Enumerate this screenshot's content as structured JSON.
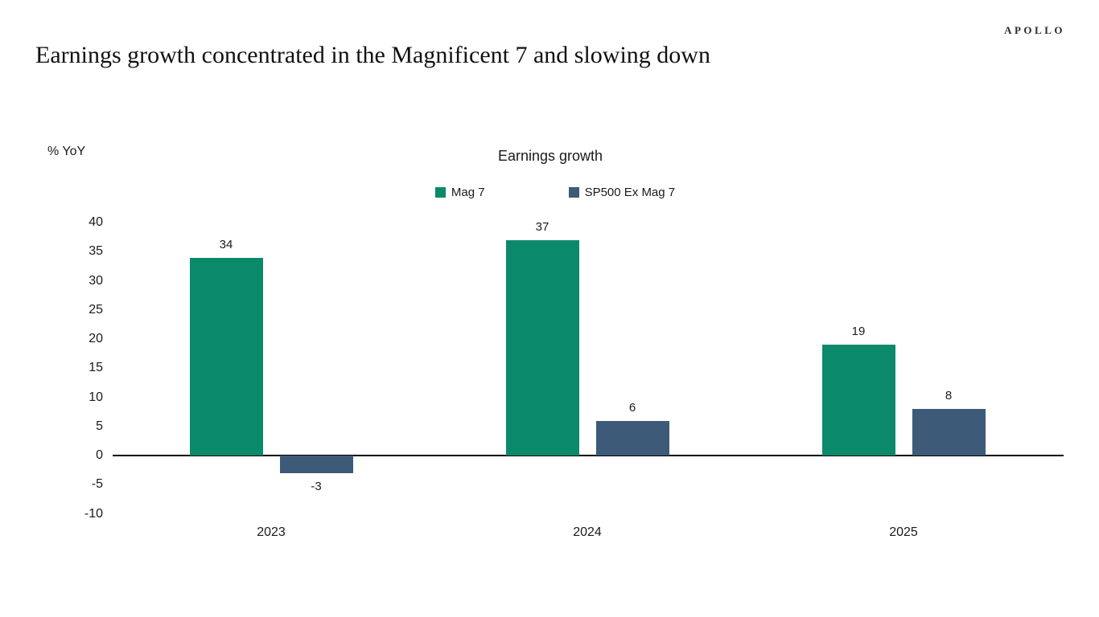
{
  "header": {
    "brand": "APOLLO",
    "title": "Earnings growth concentrated in the Magnificent 7 and slowing down"
  },
  "chart_data": {
    "type": "bar",
    "title": "Earnings growth",
    "y_axis_annotation": "% YoY",
    "categories": [
      "2023",
      "2024",
      "2025"
    ],
    "series": [
      {
        "name": "Mag 7",
        "color": "#0a8a6a",
        "values": [
          34,
          37,
          19
        ]
      },
      {
        "name": "SP500 Ex Mag 7",
        "color": "#3d5a78",
        "values": [
          -3,
          6,
          8
        ]
      }
    ],
    "data_labels": [
      [
        "34",
        "37",
        "19"
      ],
      [
        "-3",
        "6",
        "8"
      ]
    ],
    "ylim": [
      -10,
      40
    ],
    "ytick_step": 5,
    "grid": false,
    "legend_position": "top-center",
    "axis_color": "#000000",
    "text_color": "#1a1a1a"
  }
}
